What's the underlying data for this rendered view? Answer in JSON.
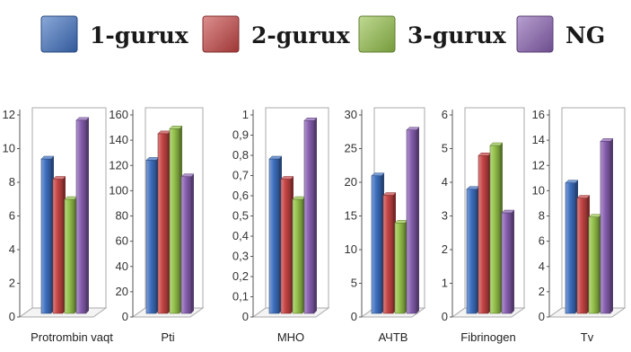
{
  "colors": {
    "series": [
      "#3d6fc0",
      "#c64444",
      "#94c14a",
      "#8860b1"
    ],
    "frame": "#aaaaaa",
    "axis": "#555555"
  },
  "chart_data": {
    "type": "bar",
    "legend": {
      "placement": "top",
      "entries": [
        "1-gurux",
        "2-gurux",
        "3-gurux",
        "NG"
      ]
    },
    "panels": [
      {
        "category": "Protrombin vaqt",
        "ylim": [
          0,
          12
        ],
        "ticks": [
          "0",
          "2",
          "4",
          "6",
          "8",
          "10",
          "12"
        ],
        "values": [
          9.6,
          8.4,
          7.2,
          11.9
        ]
      },
      {
        "category": "Pti",
        "ylim": [
          0,
          160
        ],
        "ticks": [
          "0",
          "20",
          "40",
          "60",
          "80",
          "100",
          "120",
          "140",
          "160"
        ],
        "values": [
          127,
          148,
          152,
          114
        ]
      },
      {
        "category": "МНО",
        "ylim": [
          0,
          1
        ],
        "ticks": [
          "0",
          "0,1",
          "0,2",
          "0,3",
          "0,4",
          "0,5",
          "0,6",
          "0,7",
          "0,8",
          "0,9",
          "1"
        ],
        "values": [
          0.8,
          0.7,
          0.6,
          0.99
        ]
      },
      {
        "category": "АЧТВ",
        "ylim": [
          0,
          30
        ],
        "ticks": [
          "0",
          "5",
          "10",
          "15",
          "20",
          "25",
          "30"
        ],
        "values": [
          21.5,
          18.6,
          14.5,
          28.3
        ]
      },
      {
        "category": "Fibrinogen",
        "ylim": [
          0,
          6
        ],
        "ticks": [
          "0",
          "1",
          "2",
          "3",
          "4",
          "5",
          "6"
        ],
        "values": [
          3.9,
          4.9,
          5.2,
          3.2
        ]
      },
      {
        "category": "Tv",
        "ylim": [
          0,
          16
        ],
        "ticks": [
          "0",
          "2",
          "4",
          "6",
          "8",
          "10",
          "12",
          "14",
          "16"
        ],
        "values": [
          10.9,
          9.7,
          8.2,
          14.2
        ]
      }
    ]
  }
}
